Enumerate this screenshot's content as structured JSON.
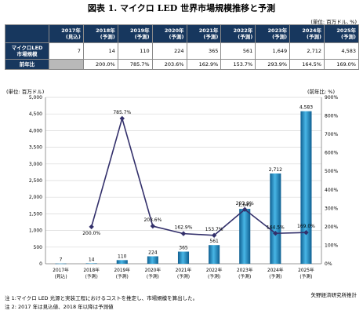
{
  "title": "図表 1. マイクロ LED 世界市場規模推移と予測",
  "table_unit": "(単位: 百万ドル, %)",
  "table": {
    "corner": "",
    "headers": [
      "2017年\n(見込)",
      "2018年\n(予測)",
      "2019年\n(予測)",
      "2020年\n(予測)",
      "2021年\n(予測)",
      "2022年\n(予測)",
      "2023年\n(予測)",
      "2024年\n(予測)",
      "2025年\n(予測)"
    ],
    "rows": [
      {
        "label": "マイクロLED\n市場規模",
        "cells": [
          "7",
          "14",
          "110",
          "224",
          "365",
          "561",
          "1,649",
          "2,712",
          "4,583"
        ]
      },
      {
        "label": "前年比",
        "cells": [
          "",
          "200.0%",
          "785.7%",
          "203.6%",
          "162.9%",
          "153.7%",
          "293.9%",
          "164.5%",
          "169.0%"
        ]
      }
    ]
  },
  "chart_data": {
    "type": "bar",
    "left_axis_label": "(単位: 百万ドル)",
    "right_axis_label": "(前年比: %)",
    "categories": [
      "2017年\n(見込)",
      "2018年\n(予測)",
      "2019年\n(予測)",
      "2020年\n(予測)",
      "2021年\n(予測)",
      "2022年\n(予測)",
      "2023年\n(予測)",
      "2024年\n(予測)",
      "2025年\n(予測)"
    ],
    "series": [
      {
        "type": "bar",
        "axis": "left",
        "values": [
          7,
          14,
          110,
          224,
          365,
          561,
          1649,
          2712,
          4583
        ],
        "labels": [
          "7",
          "14",
          "110",
          "224",
          "365",
          "561",
          "1,649",
          "2,712",
          "4,583"
        ],
        "color": "#1d7fb8"
      },
      {
        "type": "line",
        "axis": "right",
        "values": [
          null,
          200.0,
          785.7,
          203.6,
          162.9,
          153.7,
          293.9,
          164.5,
          169.0
        ],
        "labels": [
          "",
          "200.0%",
          "785.7%",
          "203.6%",
          "162.9%",
          "153.7%",
          "293.9%",
          "164.5%",
          "169.0%"
        ],
        "color": "#33306b"
      }
    ],
    "ylim_left": [
      0,
      5000
    ],
    "yticks_left": [
      "0",
      "500",
      "1,000",
      "1,500",
      "2,000",
      "2,500",
      "3,000",
      "3,500",
      "4,000",
      "4,500",
      "5,000"
    ],
    "ylim_right": [
      0,
      900
    ],
    "yticks_right": [
      "0%",
      "100%",
      "200%",
      "300%",
      "400%",
      "500%",
      "600%",
      "700%",
      "800%",
      "900%"
    ],
    "grid": true
  },
  "notes": [
    "注 1:マイクロ LED 光源と実装工程におけるコストを推定し、市場規模を算出した。",
    "注 2: 2017 年は見込値、2018 年以降は予測値"
  ],
  "credit": "矢野経済研究所推計"
}
